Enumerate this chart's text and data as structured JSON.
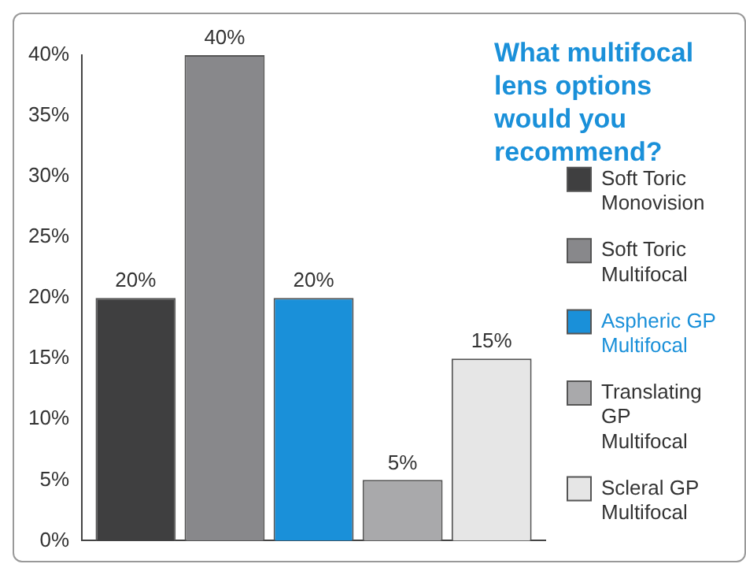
{
  "chart_data": {
    "type": "bar",
    "title": "What multifocal lens options would you recommend?",
    "categories": [
      null
    ],
    "series": [
      {
        "name": "Soft Toric Monovision",
        "color": "#3f3f40",
        "values": [
          20
        ],
        "value_labels": [
          "20%"
        ]
      },
      {
        "name": "Soft Toric Multifocal",
        "color": "#88888b",
        "values": [
          40
        ],
        "value_labels": [
          "40%"
        ]
      },
      {
        "name": "Aspheric GP Multifocal",
        "color": "#1a90d9",
        "values": [
          20
        ],
        "value_labels": [
          "20%"
        ]
      },
      {
        "name": "Translating GP Multifocal",
        "color": "#a9a9ab",
        "values": [
          5
        ],
        "value_labels": [
          "5%"
        ]
      },
      {
        "name": "Scleral GP Multifocal",
        "color": "#e6e6e6",
        "values": [
          15
        ],
        "value_labels": [
          "15%"
        ]
      }
    ],
    "ylim": [
      0,
      40
    ],
    "yticks": [
      {
        "value": 0,
        "label": "0%"
      },
      {
        "value": 5,
        "label": "5%"
      },
      {
        "value": 10,
        "label": "10%"
      },
      {
        "value": 15,
        "label": "15%"
      },
      {
        "value": 20,
        "label": "20%"
      },
      {
        "value": 25,
        "label": "25%"
      },
      {
        "value": 30,
        "label": "30%"
      },
      {
        "value": 35,
        "label": "35%"
      },
      {
        "value": 40,
        "label": "40%"
      }
    ],
    "tick_labels": "y",
    "legend": "right",
    "grid": false
  }
}
